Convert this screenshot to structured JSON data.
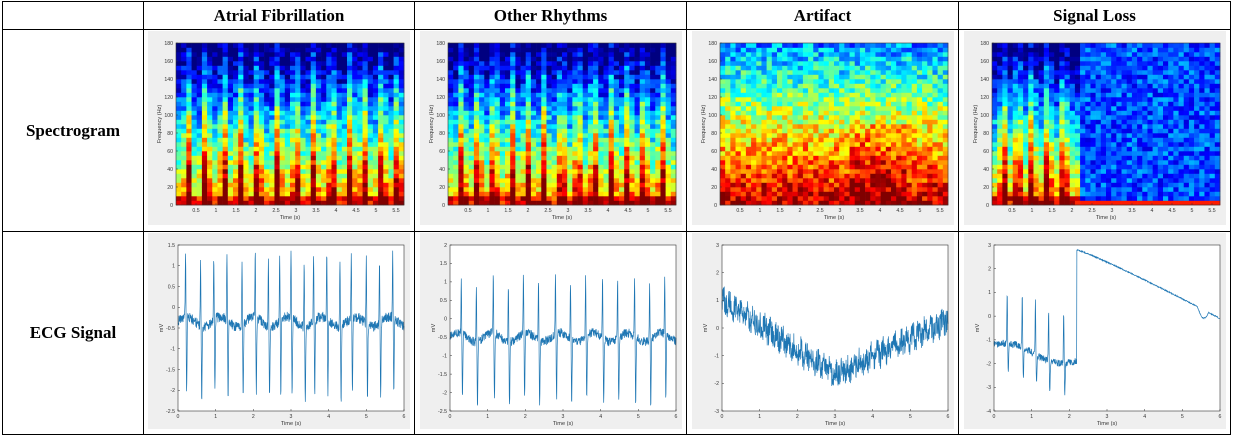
{
  "columns": [
    "Atrial Fibrillation",
    "Other Rhythms",
    "Artifact",
    "Signal Loss"
  ],
  "rows": [
    "Spectrogram",
    "ECG Signal"
  ],
  "colors": {
    "panel_bg": "#efefef",
    "plot_bg": "#ffffff",
    "ecg_line": "#1f77b4",
    "axis": "#333333",
    "spec_low": "#0000aa",
    "spec_high": "#8b0000"
  },
  "chart_data": [
    {
      "type": "heatmap",
      "panel": "spectrogram-atrial-fibrillation",
      "xlabel": "Time (s)",
      "ylabel": "Frequency (Hz)",
      "xlim": [
        0,
        5.7
      ],
      "ylim": [
        0,
        180
      ],
      "xticks": [
        0.5,
        1,
        1.5,
        2,
        2.5,
        3,
        3.5,
        4,
        4.5,
        5,
        5.5
      ],
      "yticks": [
        0,
        20,
        40,
        60,
        80,
        100,
        120,
        140,
        160,
        180
      ],
      "beat_times": [
        0.3,
        0.75,
        1.2,
        1.6,
        2.05,
        2.55,
        3.0,
        3.45,
        3.9,
        4.35,
        4.7,
        5.15,
        5.55
      ]
    },
    {
      "type": "heatmap",
      "panel": "spectrogram-other-rhythms",
      "xlabel": "Time (s)",
      "ylabel": "Frequency (Hz)",
      "xlim": [
        0,
        5.7
      ],
      "ylim": [
        0,
        180
      ],
      "xticks": [
        0.5,
        1,
        1.5,
        2,
        2.5,
        3,
        3.5,
        4,
        4.5,
        5,
        5.5
      ],
      "yticks": [
        0,
        20,
        40,
        60,
        80,
        100,
        120,
        140,
        160,
        180
      ],
      "beat_times": [
        0.35,
        0.75,
        1.15,
        1.6,
        2.0,
        2.4,
        2.85,
        3.25,
        3.65,
        4.1,
        4.5,
        4.9,
        5.35
      ]
    },
    {
      "type": "heatmap",
      "panel": "spectrogram-artifact",
      "xlabel": "Time (s)",
      "ylabel": "Frequency (Hz)",
      "xlim": [
        0,
        5.7
      ],
      "ylim": [
        0,
        180
      ],
      "xticks": [
        0.5,
        1,
        1.5,
        2,
        2.5,
        3,
        3.5,
        4,
        4.5,
        5,
        5.5
      ],
      "yticks": [
        0,
        20,
        40,
        60,
        80,
        100,
        120,
        140,
        160,
        180
      ],
      "beat_times": []
    },
    {
      "type": "heatmap",
      "panel": "spectrogram-signal-loss",
      "xlabel": "Time (s)",
      "ylabel": "Frequency (Hz)",
      "xlim": [
        0,
        5.7
      ],
      "ylim": [
        0,
        180
      ],
      "xticks": [
        0.5,
        1,
        1.5,
        2,
        2.5,
        3,
        3.5,
        4,
        4.5,
        5,
        5.5
      ],
      "yticks": [
        0,
        20,
        40,
        60,
        80,
        100,
        120,
        140,
        160,
        180
      ],
      "beat_times": [
        0.3,
        0.65,
        1.0,
        1.4,
        1.8
      ],
      "signal_loss_start": 2.25
    },
    {
      "type": "line",
      "panel": "ecg-atrial-fibrillation",
      "xlabel": "Time (s)",
      "ylabel": "mV",
      "xlim": [
        0,
        6
      ],
      "ylim": [
        -2.5,
        1.5
      ],
      "xticks": [
        0,
        1,
        2,
        3,
        4,
        5,
        6
      ],
      "yticks": [
        -2.5,
        -2,
        -1.5,
        -1,
        -0.5,
        0,
        0.5,
        1,
        1.5
      ],
      "beat_times": [
        0.2,
        0.6,
        0.95,
        1.3,
        1.7,
        2.05,
        2.4,
        2.7,
        3.0,
        3.35,
        3.6,
        3.95,
        4.3,
        4.6,
        5.0,
        5.35,
        5.7
      ],
      "baseline": -0.35
    },
    {
      "type": "line",
      "panel": "ecg-other-rhythms",
      "xlabel": "Time (s)",
      "ylabel": "mV",
      "xlim": [
        0,
        6
      ],
      "ylim": [
        -2.5,
        2
      ],
      "xticks": [
        0,
        1,
        2,
        3,
        4,
        5,
        6
      ],
      "yticks": [
        -2.5,
        -2,
        -1.5,
        -1,
        -0.5,
        0,
        0.5,
        1,
        1.5,
        2
      ],
      "beat_times": [
        0.3,
        0.7,
        1.15,
        1.55,
        1.95,
        2.35,
        2.8,
        3.2,
        3.6,
        4.05,
        4.45,
        4.9,
        5.3,
        5.7
      ],
      "baseline": -0.5
    },
    {
      "type": "line",
      "panel": "ecg-artifact",
      "xlabel": "Time (s)",
      "ylabel": "mV",
      "xlim": [
        0,
        6
      ],
      "ylim": [
        -3,
        3
      ],
      "xticks": [
        0,
        1,
        2,
        3,
        4,
        5,
        6
      ],
      "yticks": [
        -3,
        -2,
        -1,
        0,
        1,
        2,
        3
      ],
      "baseline_start": 1.0,
      "baseline_min": -1.7,
      "baseline_end": 0.3
    },
    {
      "type": "line",
      "panel": "ecg-signal-loss",
      "xlabel": "Time (s)",
      "ylabel": "mV",
      "xlim": [
        0,
        6
      ],
      "ylim": [
        -4,
        3
      ],
      "xticks": [
        0,
        1,
        2,
        3,
        4,
        5,
        6
      ],
      "yticks": [
        -4,
        -3,
        -2,
        -1,
        0,
        1,
        2,
        3
      ],
      "beat_times": [
        0.35,
        0.75,
        1.1,
        1.45,
        1.85
      ],
      "jump_time": 2.2,
      "jump_value": 2.8,
      "final_value": -0.1
    }
  ]
}
